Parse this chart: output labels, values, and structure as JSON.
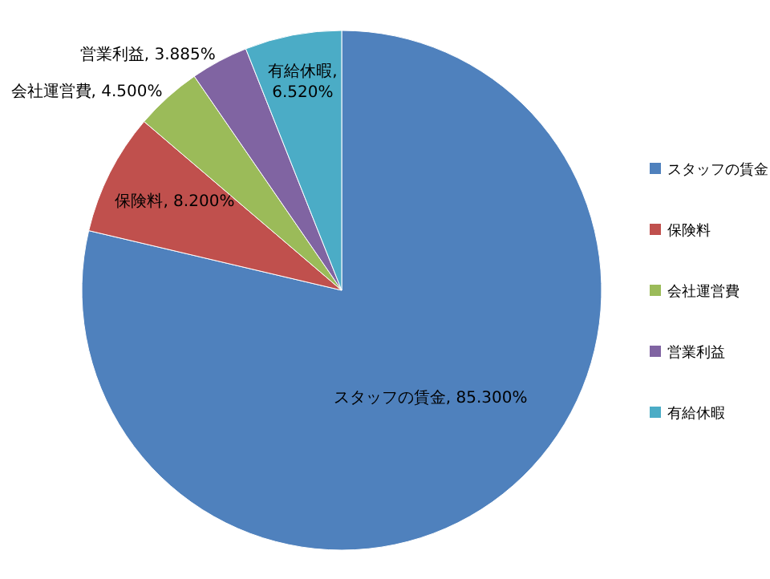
{
  "chart_data": {
    "type": "pie",
    "categories": [
      "スタッフの賃金",
      "保険料",
      "会社運営費",
      "営業利益",
      "有給休暇"
    ],
    "values": [
      85.3,
      8.2,
      4.5,
      3.885,
      6.52
    ],
    "value_labels": [
      "スタッフの賃金, 85.300%",
      "保険料, 8.200%",
      "会社運営費, 4.500%",
      "営業利益, 3.885%",
      "有給休暇, 6.520%"
    ],
    "colors": [
      "#4f81bd",
      "#c0504d",
      "#9bbb59",
      "#8064a2",
      "#4bacc6"
    ],
    "legend": "right"
  }
}
